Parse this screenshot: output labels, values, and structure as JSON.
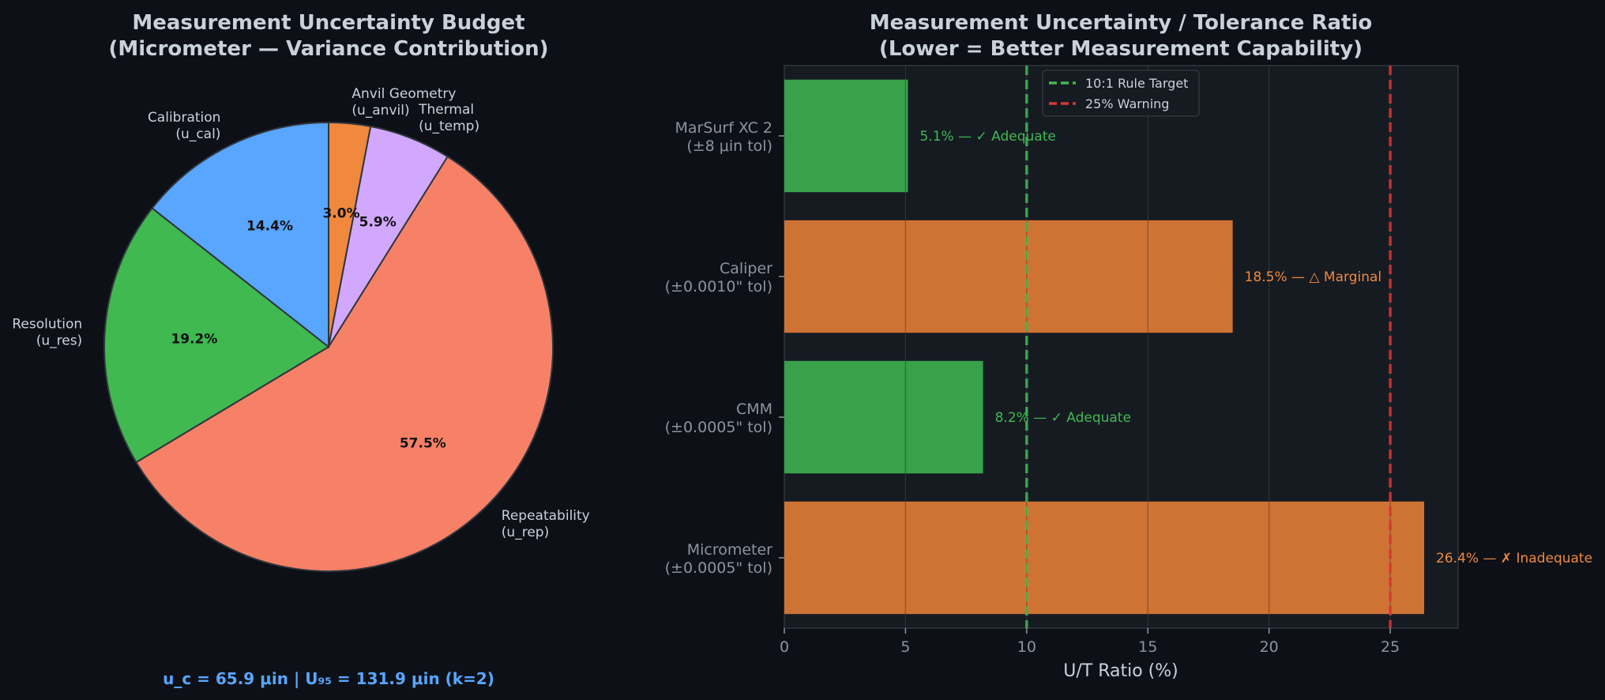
{
  "colors": {
    "background": "#0d1117",
    "plot_background": "#161b22",
    "title_text": "#c9d1d9",
    "label_text": "#8b949e",
    "green": "#3fb950",
    "green_bar": "#37a24a",
    "orange": "#f0883e",
    "orange_bar": "#cf7335",
    "red": "#da3633",
    "blue_text": "#58a6ff",
    "pie_edge": "#30363d"
  },
  "chart_data": [
    {
      "type": "pie",
      "title_line1": "Measurement Uncertainty Budget",
      "title_line2": "(Micrometer — Variance Contribution)",
      "slices": [
        {
          "label_line1": "Anvil Geometry",
          "label_line2": "(u_anvil)",
          "value": 3.0,
          "pct_label": "3.0%",
          "color": "#f0883e"
        },
        {
          "label_line1": "Thermal",
          "label_line2": "(u_temp)",
          "value": 5.9,
          "pct_label": "5.9%",
          "color": "#d2a8ff"
        },
        {
          "label_line1": "Repeatability",
          "label_line2": "(u_rep)",
          "value": 57.5,
          "pct_label": "57.5%",
          "color": "#f78166"
        },
        {
          "label_line1": "Resolution",
          "label_line2": "(u_res)",
          "value": 19.2,
          "pct_label": "19.2%",
          "color": "#3fb950"
        },
        {
          "label_line1": "Calibration",
          "label_line2": "(u_cal)",
          "value": 14.4,
          "pct_label": "14.4%",
          "color": "#58a6ff"
        }
      ],
      "start_angle_deg": 90,
      "direction": "clockwise",
      "footer": "u_c = 65.9 μin  |  U₉₅ = 131.9 μin  (k=2)"
    },
    {
      "type": "bar",
      "orientation": "horizontal",
      "title_line1": "Measurement Uncertainty / Tolerance Ratio",
      "title_line2": "(Lower = Better Measurement Capability)",
      "xlabel": "U/T Ratio (%)",
      "xlim": [
        0,
        27.8
      ],
      "xticks": [
        "0",
        "5",
        "10",
        "15",
        "20",
        "25"
      ],
      "categories": [
        {
          "line1": "MarSurf XC 2",
          "line2": "(±8 μin tol)",
          "value": 5.1,
          "annotation": "5.1% — ✓ Adequate",
          "status": "adequate"
        },
        {
          "line1": "Caliper",
          "line2": "(±0.0010\" tol)",
          "value": 18.5,
          "annotation": "18.5% — △ Marginal",
          "status": "marginal"
        },
        {
          "line1": "CMM",
          "line2": "(±0.0005\" tol)",
          "value": 8.2,
          "annotation": "8.2% — ✓ Adequate",
          "status": "adequate"
        },
        {
          "line1": "Micrometer",
          "line2": "(±0.0005\" tol)",
          "value": 26.4,
          "annotation": "26.4% — ✗ Inadequate",
          "status": "inadequate"
        }
      ],
      "reference_lines": [
        {
          "x": 10,
          "label": "10:1 Rule Target",
          "color": "#3fb950"
        },
        {
          "x": 25,
          "label": "25% Warning",
          "color": "#da3633"
        }
      ],
      "legend_position": "top-center",
      "grid": "vertical"
    }
  ]
}
